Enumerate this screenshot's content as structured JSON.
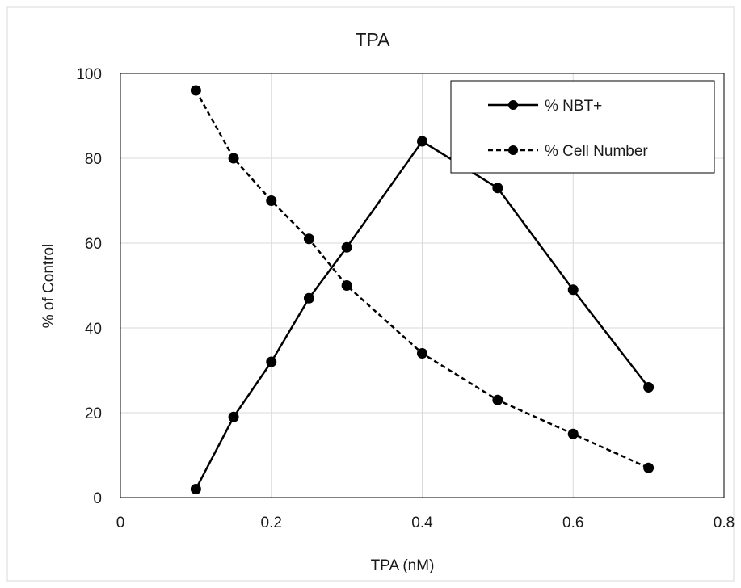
{
  "chart_data": {
    "type": "line",
    "title": "TPA",
    "xlabel": "TPA (nM)",
    "ylabel": "% of Control",
    "xlim": [
      0,
      0.8
    ],
    "ylim": [
      0,
      100
    ],
    "xticks": [
      0,
      0.2,
      0.4,
      0.6,
      0.8
    ],
    "xtick_labels": [
      "0",
      "0.2",
      "0.4",
      "0.6",
      "0.8"
    ],
    "yticks": [
      0,
      20,
      40,
      60,
      80,
      100
    ],
    "ytick_labels": [
      "0",
      "20",
      "40",
      "60",
      "80",
      "100"
    ],
    "grid": true,
    "legend_position": "top-right",
    "series": [
      {
        "name": "% NBT+",
        "style": "solid",
        "color": "#000000",
        "x": [
          0.1,
          0.15,
          0.2,
          0.25,
          0.3,
          0.4,
          0.5,
          0.6,
          0.7
        ],
        "y": [
          2,
          19,
          32,
          47,
          59,
          84,
          73,
          49,
          26
        ]
      },
      {
        "name": "% Cell Number",
        "style": "dashed",
        "color": "#000000",
        "x": [
          0.1,
          0.15,
          0.2,
          0.25,
          0.3,
          0.4,
          0.5,
          0.6,
          0.7
        ],
        "y": [
          96,
          80,
          70,
          61,
          50,
          34,
          23,
          15,
          7
        ]
      }
    ]
  }
}
